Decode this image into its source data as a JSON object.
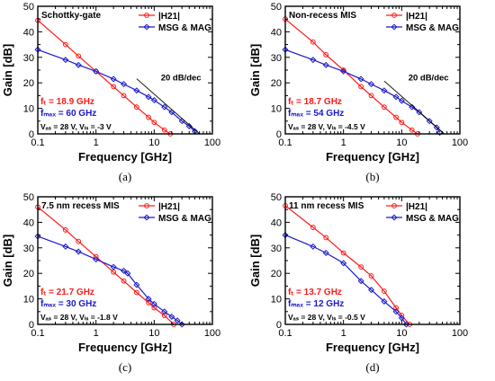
{
  "colors": {
    "h21": "#ff1a1a",
    "msg": "#1a1acc",
    "axis": "#000000",
    "fit": "#000000"
  },
  "chart_data": [
    {
      "type": "line",
      "caption": "(a)",
      "label": "Schottky-gate",
      "xlabel": "Frequency [GHz]",
      "ylabel": "Gain [dB]",
      "x_scale": "log",
      "xlim": [
        0.1,
        100
      ],
      "ylim": [
        0,
        50
      ],
      "xticks": [
        0.1,
        1,
        10,
        100
      ],
      "xtick_labels": [
        "0.1",
        "1",
        "10",
        "100"
      ],
      "yticks": [
        0,
        10,
        20,
        30,
        40,
        50
      ],
      "legend": [
        "|H21|",
        "MSG & MAG"
      ],
      "legend_position": "top-right",
      "ft_text": "fₜ = 18.9 GHz",
      "fmax_text": "fₘₐₓ = 60 GHz",
      "bias_text": "Vₐₛ = 28 V, Vₗₛ = -3 V",
      "fit_label": "20 dB/dec",
      "ft": 18.9,
      "fmax": 60,
      "series": [
        {
          "name": "|H21|",
          "x": [
            0.1,
            0.3,
            0.5,
            1,
            2,
            3,
            5,
            8,
            10,
            15,
            18.9
          ],
          "y": [
            44.5,
            35,
            30.5,
            24.5,
            18.5,
            15,
            10.5,
            6.5,
            4.5,
            1.5,
            0
          ]
        },
        {
          "name": "MSG & MAG",
          "x": [
            0.1,
            0.3,
            0.5,
            1,
            2,
            3,
            5,
            8,
            10,
            15,
            20,
            30,
            40,
            50
          ],
          "y": [
            33,
            29,
            27,
            24.5,
            21.5,
            19.5,
            17,
            14.5,
            13.2,
            10.5,
            8.5,
            5,
            3,
            1
          ]
        },
        {
          "name": "20 dB/dec",
          "x": [
            5,
            60
          ],
          "y": [
            21.6,
            0
          ]
        }
      ]
    },
    {
      "type": "line",
      "caption": "(b)",
      "label": "Non-recess MIS",
      "xlabel": "Frequency [GHz]",
      "ylabel": "Gain [dB]",
      "x_scale": "log",
      "xlim": [
        0.1,
        100
      ],
      "ylim": [
        0,
        50
      ],
      "xticks": [
        0.1,
        1,
        10,
        100
      ],
      "xtick_labels": [
        "0.1",
        "1",
        "10",
        "100"
      ],
      "yticks": [
        0,
        10,
        20,
        30,
        40,
        50
      ],
      "legend": [
        "|H21|",
        "MSG & MAG"
      ],
      "legend_position": "top-right",
      "ft_text": "fₜ = 18.7 GHz",
      "fmax_text": "fₘₐₓ = 54 GHz",
      "bias_text": "Vₐₛ = 28 V, Vₗₛ = -4.5 V",
      "fit_label": "20 dB/dec",
      "ft": 18.7,
      "fmax": 54,
      "series": [
        {
          "name": "|H21|",
          "x": [
            0.1,
            0.3,
            0.5,
            1,
            2,
            3,
            5,
            8,
            10,
            15,
            18.7
          ],
          "y": [
            45,
            36,
            31,
            25,
            18.5,
            15,
            10.5,
            6.5,
            4.5,
            1.5,
            0
          ]
        },
        {
          "name": "MSG & MAG",
          "x": [
            0.1,
            0.3,
            0.5,
            1,
            2,
            3,
            5,
            8,
            10,
            15,
            20,
            30,
            40,
            45
          ],
          "y": [
            33,
            29,
            27,
            24.5,
            21.5,
            19.5,
            17,
            14.5,
            13,
            10.5,
            8.5,
            5,
            2.5,
            0.5
          ]
        },
        {
          "name": "20 dB/dec",
          "x": [
            5,
            54
          ],
          "y": [
            20.7,
            0
          ]
        }
      ]
    },
    {
      "type": "line",
      "caption": "(c)",
      "label": "7.5 nm recess MIS",
      "xlabel": "Frequency [GHz]",
      "ylabel": "Gain [dB]",
      "x_scale": "log",
      "xlim": [
        0.1,
        100
      ],
      "ylim": [
        0,
        50
      ],
      "xticks": [
        0.1,
        1,
        10,
        100
      ],
      "xtick_labels": [
        "0.1",
        "1",
        "10",
        "100"
      ],
      "yticks": [
        0,
        10,
        20,
        30,
        40,
        50
      ],
      "legend": [
        "|H21|",
        "MSG & MAG"
      ],
      "legend_position": "top-right",
      "ft_text": "fₜ = 21.7 GHz",
      "fmax_text": "fₘₐₓ = 30 GHz",
      "bias_text": "Vₐₛ = 28 V, Vₗₛ = -1.8 V",
      "ft": 21.7,
      "fmax": 30,
      "series": [
        {
          "name": "|H21|",
          "x": [
            0.1,
            0.3,
            0.5,
            1,
            2,
            3,
            5,
            8,
            10,
            15,
            21.7
          ],
          "y": [
            46,
            37,
            32.5,
            26.5,
            20.5,
            17,
            12.5,
            8.5,
            6.5,
            3.5,
            0
          ]
        },
        {
          "name": "MSG & MAG",
          "x": [
            0.1,
            0.3,
            0.5,
            1,
            2,
            3,
            3.5,
            5,
            8,
            10,
            15,
            20,
            25,
            30
          ],
          "y": [
            34.5,
            30.5,
            28.5,
            25.5,
            22.5,
            21,
            20,
            15.5,
            10,
            8,
            5,
            3,
            1.5,
            0
          ]
        }
      ]
    },
    {
      "type": "line",
      "caption": "(d)",
      "label": "11 nm recess MIS",
      "xlabel": "Frequency [GHz]",
      "ylabel": "Gain [dB]",
      "x_scale": "log",
      "xlim": [
        0.1,
        100
      ],
      "ylim": [
        0,
        50
      ],
      "xticks": [
        0.1,
        1,
        10,
        100
      ],
      "xtick_labels": [
        "0.1",
        "1",
        "10",
        "100"
      ],
      "yticks": [
        0,
        10,
        20,
        30,
        40,
        50
      ],
      "legend": [
        "|H21|",
        "MSG & MAG"
      ],
      "legend_position": "top-right",
      "ft_text": "fₜ = 13.7 GHz",
      "fmax_text": "fₘₐₓ = 12 GHz",
      "bias_text": "Vₐₛ = 28 V, Vₗₛ = -0.5 V",
      "ft": 13.7,
      "fmax": 12,
      "series": [
        {
          "name": "|H21|",
          "x": [
            0.1,
            0.3,
            0.5,
            1,
            2,
            3,
            5,
            8,
            10,
            13.7
          ],
          "y": [
            46.5,
            38,
            34,
            28,
            22.5,
            19,
            13,
            6.5,
            3.5,
            0
          ]
        },
        {
          "name": "MSG & MAG",
          "x": [
            0.1,
            0.3,
            0.5,
            1,
            2,
            3,
            5,
            8,
            10,
            12
          ],
          "y": [
            35,
            30.5,
            28,
            24,
            17,
            13.5,
            9,
            5,
            2.5,
            0
          ]
        }
      ]
    }
  ]
}
